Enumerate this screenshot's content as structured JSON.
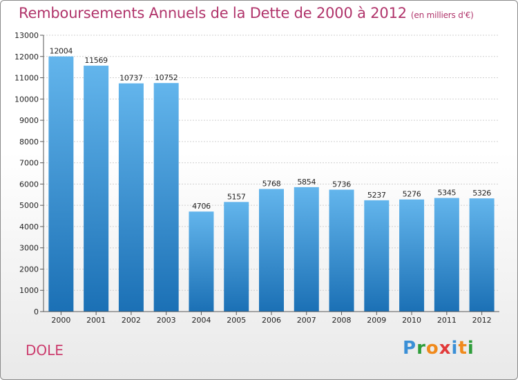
{
  "header": {
    "title": "Remboursements Annuels de la Dette de 2000 à 2012",
    "unit": "(en milliers d'€)"
  },
  "footer": {
    "town": "DOLE",
    "logo": [
      "P",
      "r",
      "o",
      "x",
      "i",
      "t",
      "i"
    ]
  },
  "colors": {
    "title": "#b0336a",
    "bar_top": "#63b5ec",
    "bar_bottom": "#1b70b5",
    "logo": [
      "#3a8fd6",
      "#2e9d3a",
      "#f08a1c",
      "#e23a3a",
      "#3a8fd6",
      "#f08a1c",
      "#2e9d3a"
    ]
  },
  "chart_data": {
    "type": "bar",
    "title": "Remboursements Annuels de la Dette de 2000 à 2012",
    "subtitle": "(en milliers d'€)",
    "categories": [
      "2000",
      "2001",
      "2002",
      "2003",
      "2004",
      "2005",
      "2006",
      "2007",
      "2008",
      "2009",
      "2010",
      "2011",
      "2012"
    ],
    "values": [
      12004,
      11569,
      10737,
      10752,
      4706,
      5157,
      5768,
      5854,
      5736,
      5237,
      5276,
      5345,
      5326
    ],
    "ylim": [
      0,
      13000
    ],
    "yticks": [
      0,
      1000,
      2000,
      3000,
      4000,
      5000,
      6000,
      7000,
      8000,
      9000,
      10000,
      11000,
      12000,
      13000
    ],
    "grid": true,
    "data_labels": true
  }
}
